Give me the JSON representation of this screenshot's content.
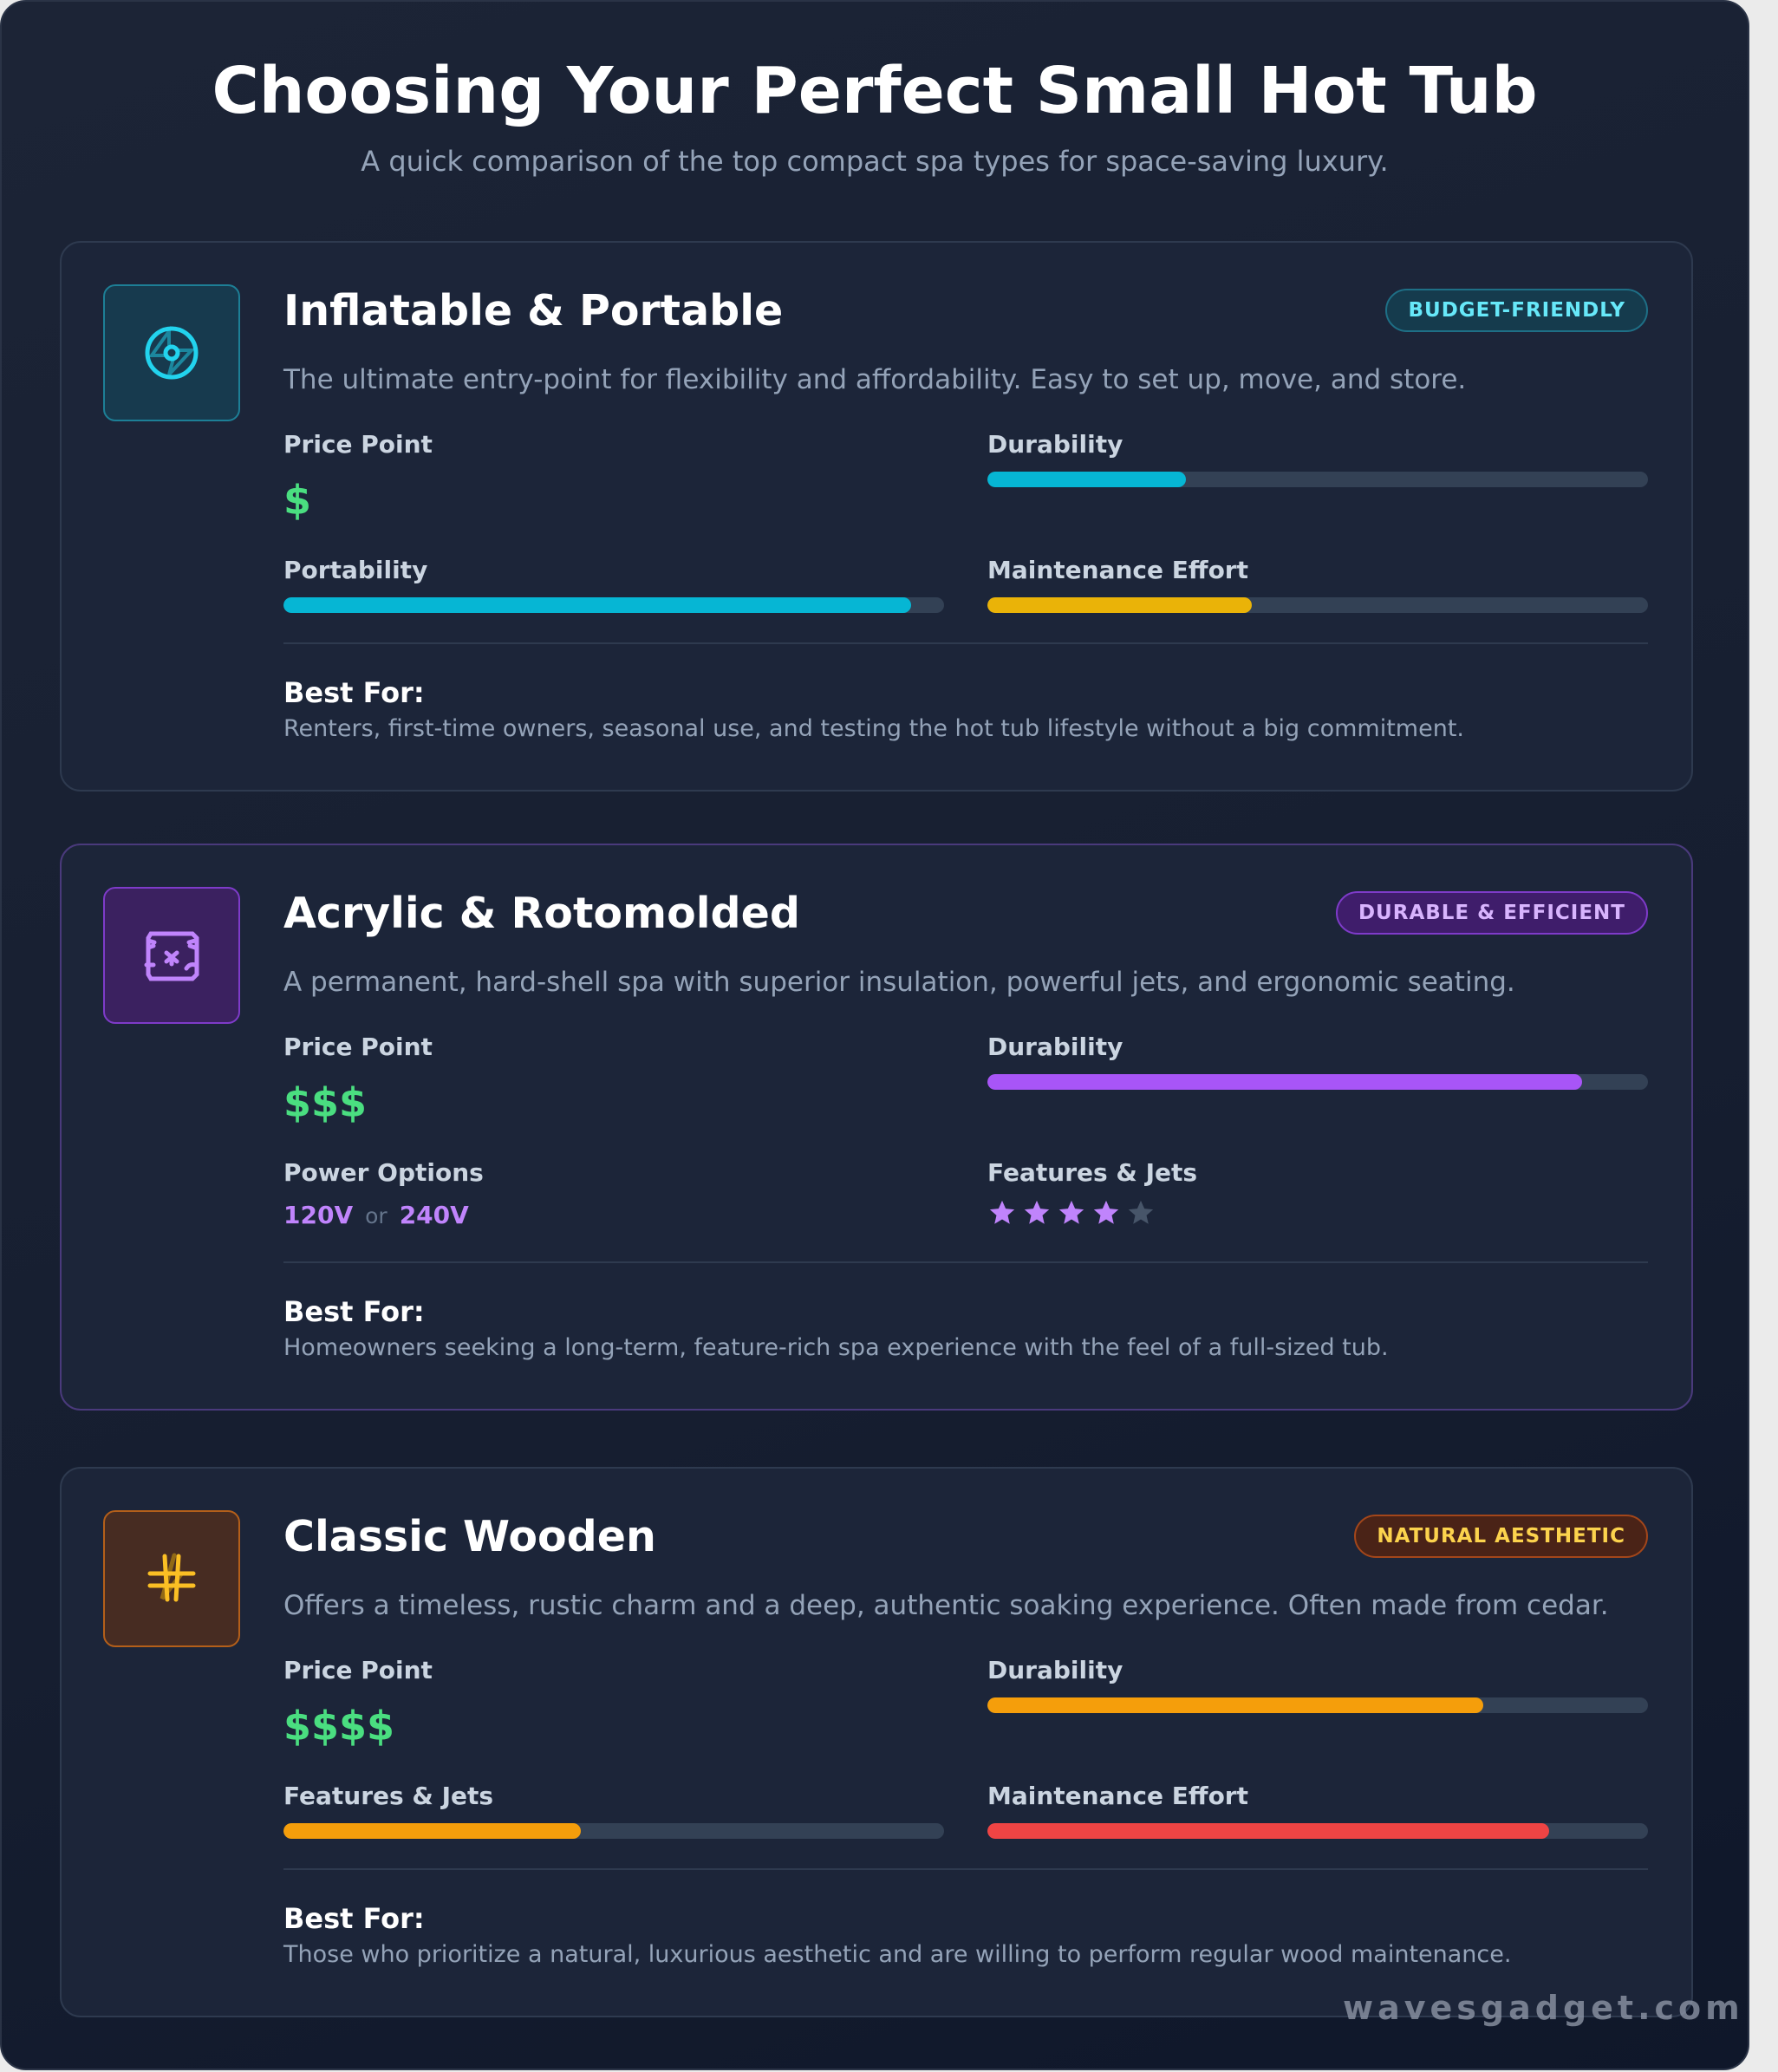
{
  "header": {
    "title": "Choosing Your Perfect Small Hot Tub",
    "subtitle": "A quick comparison of the top compact spa types for space-saving luxury."
  },
  "colors": {
    "price": "#4ade80",
    "track": "#334155",
    "cyan": "#06b6d4",
    "yellow": "#eab308",
    "purple": "#a855f7",
    "amber": "#f59e0b",
    "red": "#ef4444",
    "star_filled": "#c084fc",
    "star_empty": "#475569"
  },
  "cards": [
    {
      "title": "Inflatable & Portable",
      "badge": "BUDGET-FRIENDLY",
      "icon": "portable-disc-icon",
      "description": "The ultimate entry-point for flexibility and affordability. Easy to set up, move, and store.",
      "price_label": "Price Point",
      "price": "$",
      "durability_label": "Durability",
      "durability": 30,
      "portability_label": "Portability",
      "portability": 95,
      "maintenance_label": "Maintenance Effort",
      "maintenance": 40,
      "best_for_label": "Best For:",
      "best_for": "Renters, first-time owners, seasonal use, and testing the hot tub lifestyle without a big commitment."
    },
    {
      "title": "Acrylic & Rotomolded",
      "badge": "DURABLE & EFFICIENT",
      "icon": "hard-shell-icon",
      "description": "A permanent, hard-shell spa with superior insulation, powerful jets, and ergonomic seating.",
      "price_label": "Price Point",
      "price": "$$$",
      "durability_label": "Durability",
      "durability": 90,
      "power_label": "Power Options",
      "power_a": "120V",
      "power_or": "or",
      "power_b": "240V",
      "features_label": "Features & Jets",
      "features_stars": 4,
      "features_stars_max": 5,
      "best_for_label": "Best For:",
      "best_for": "Homeowners seeking a long-term, feature-rich spa experience with the feel of a full-sized tub."
    },
    {
      "title": "Classic Wooden",
      "badge": "NATURAL AESTHETIC",
      "icon": "wood-grid-icon",
      "description": "Offers a timeless, rustic charm and a deep, authentic soaking experience. Often made from cedar.",
      "price_label": "Price Point",
      "price": "$$$$",
      "durability_label": "Durability",
      "durability": 75,
      "features_label": "Features & Jets",
      "features": 45,
      "maintenance_label": "Maintenance Effort",
      "maintenance": 85,
      "best_for_label": "Best For:",
      "best_for": "Those who prioritize a natural, luxurious aesthetic and are willing to perform regular wood maintenance."
    }
  ],
  "watermark": "wavesgadget.com"
}
